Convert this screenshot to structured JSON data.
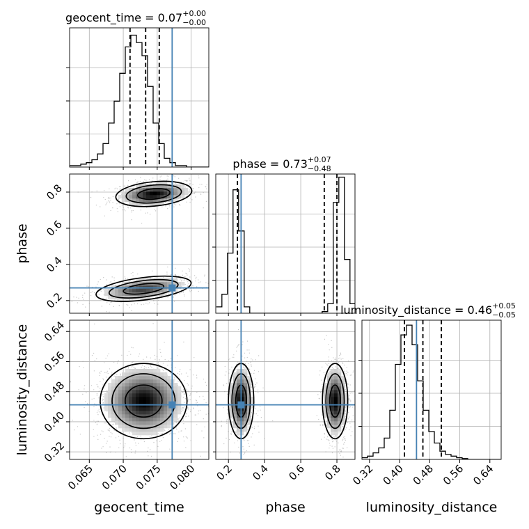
{
  "chart_data": {
    "type": "corner",
    "parameters": [
      "geocent_time",
      "phase",
      "luminosity_distance"
    ],
    "truth_color": "#4682b4",
    "truths": {
      "geocent_time": 0.0772,
      "phase": 0.27,
      "luminosity_distance": 0.445
    },
    "axes": {
      "geocent_time": {
        "xlim": [
          0.0621,
          0.0826
        ],
        "ticks": [
          0.065,
          0.07,
          0.075,
          0.08
        ],
        "tick_labels": [
          "0.065",
          "0.070",
          "0.075",
          "0.080"
        ]
      },
      "phase": {
        "xlim": [
          0.13,
          0.9
        ],
        "ticks": [
          0.2,
          0.4,
          0.6,
          0.8
        ],
        "tick_labels": [
          "0.2",
          "0.4",
          "0.6",
          "0.8"
        ]
      },
      "luminosity_distance": {
        "xlim": [
          0.3,
          0.67
        ],
        "ticks": [
          0.32,
          0.4,
          0.48,
          0.56,
          0.64
        ],
        "tick_labels": [
          "0.32",
          "0.40",
          "0.48",
          "0.56",
          "0.64"
        ]
      }
    },
    "diagonals": [
      {
        "param": "geocent_time",
        "title_prefix": "geocent_time = 0.07",
        "title_plus": "+0.00",
        "title_minus": "−0.00",
        "quantiles": [
          0.071,
          0.0733,
          0.0753
        ],
        "bin_start": 0.0621,
        "bin_width": 0.00082,
        "ymax": 0.95,
        "counts": [
          0.01,
          0.01,
          0.02,
          0.03,
          0.05,
          0.09,
          0.16,
          0.3,
          0.45,
          0.64,
          0.82,
          0.9,
          0.85,
          0.76,
          0.55,
          0.3,
          0.16,
          0.06,
          0.03,
          0.01,
          0.01,
          0.0,
          0.0,
          0.0,
          0.0
        ]
      },
      {
        "param": "phase",
        "title_prefix": "phase = 0.73",
        "title_plus": "+0.07",
        "title_minus": "−0.48",
        "quantiles": [
          0.25,
          0.73,
          0.8
        ],
        "bin_start": 0.133,
        "bin_width": 0.0308,
        "ymax": 0.88,
        "counts": [
          0.04,
          0.12,
          0.38,
          0.78,
          0.52,
          0.04,
          0.0,
          0.0,
          0.0,
          0.0,
          0.0,
          0.0,
          0.0,
          0.0,
          0.0,
          0.0,
          0.0,
          0.0,
          0.0,
          0.01,
          0.06,
          0.7,
          0.86,
          0.34,
          0.06
        ]
      },
      {
        "param": "luminosity_distance",
        "title_prefix": "luminosity_distance = 0.46",
        "title_plus": "+0.05",
        "title_minus": "−0.05",
        "quantiles": [
          0.413,
          0.462,
          0.511
        ],
        "bin_start": 0.3,
        "bin_width": 0.0148,
        "ymax": 0.85,
        "counts": [
          0.01,
          0.02,
          0.04,
          0.07,
          0.13,
          0.3,
          0.58,
          0.76,
          0.82,
          0.7,
          0.48,
          0.3,
          0.17,
          0.1,
          0.05,
          0.03,
          0.02,
          0.01,
          0.005,
          0.0,
          0.0,
          0.0,
          0.0,
          0.0,
          0.0
        ]
      }
    ],
    "pairs": [
      {
        "row": 1,
        "col": 0,
        "x": "geocent_time",
        "y": "phase",
        "blobs": [
          {
            "cx": 0.0745,
            "cy": 0.79,
            "sx": 0.0028,
            "sy": 0.035,
            "rho": 0.25,
            "w": 0.55
          },
          {
            "cx": 0.073,
            "cy": 0.265,
            "sx": 0.0035,
            "sy": 0.035,
            "rho": 0.45,
            "w": 0.45
          }
        ]
      },
      {
        "row": 2,
        "col": 0,
        "x": "geocent_time",
        "y": "luminosity_distance",
        "blobs": [
          {
            "cx": 0.073,
            "cy": 0.455,
            "sx": 0.0032,
            "sy": 0.05,
            "rho": 0.0,
            "w": 1.0
          }
        ]
      },
      {
        "row": 2,
        "col": 1,
        "x": "phase",
        "y": "luminosity_distance",
        "blobs": [
          {
            "cx": 0.27,
            "cy": 0.455,
            "sx": 0.035,
            "sy": 0.05,
            "rho": 0.0,
            "w": 0.5
          },
          {
            "cx": 0.79,
            "cy": 0.455,
            "sx": 0.035,
            "sy": 0.05,
            "rho": 0.0,
            "w": 0.5
          }
        ]
      }
    ],
    "grid": true
  }
}
